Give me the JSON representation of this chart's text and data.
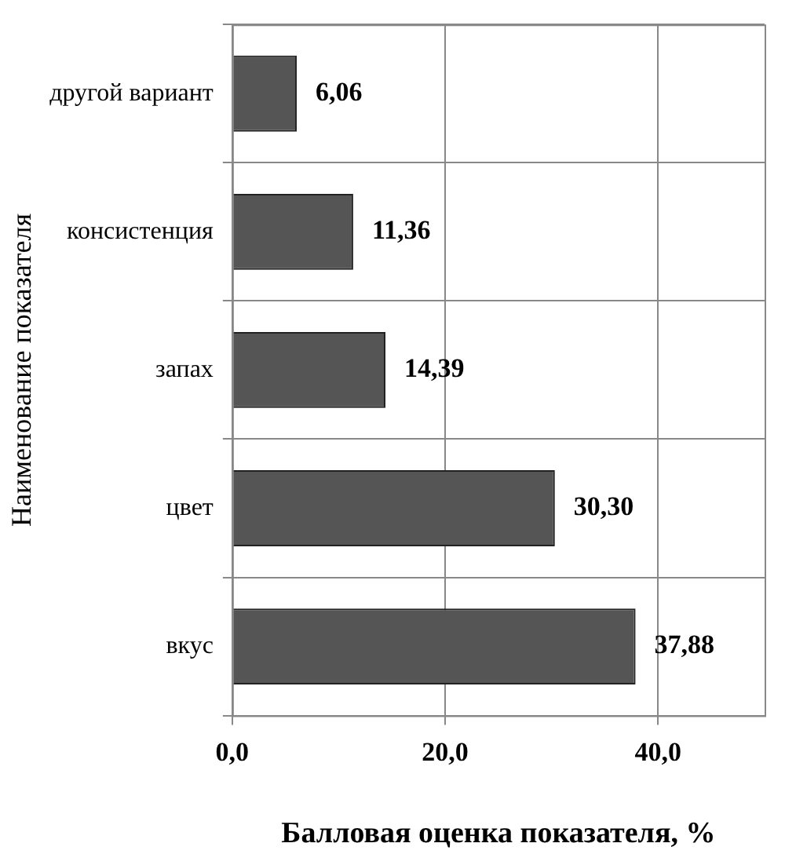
{
  "chart_data": {
    "type": "bar",
    "orientation": "horizontal",
    "categories": [
      "другой вариант",
      "консистенция",
      "запах",
      "цвет",
      "вкус"
    ],
    "values": [
      6.06,
      11.36,
      14.39,
      30.3,
      37.88
    ],
    "value_labels": [
      "6,06",
      "11,36",
      "14,39",
      "30,30",
      "37,88"
    ],
    "color": "#555555",
    "xlim": [
      0,
      50
    ],
    "xticks": [
      {
        "value": 0,
        "label": "0,0"
      },
      {
        "value": 20,
        "label": "20,0"
      },
      {
        "value": 40,
        "label": "40,0"
      }
    ],
    "xlabel": "Балловая оценка показателя, %",
    "ylabel": "Наименование показателя",
    "grid": true,
    "legend": false
  }
}
